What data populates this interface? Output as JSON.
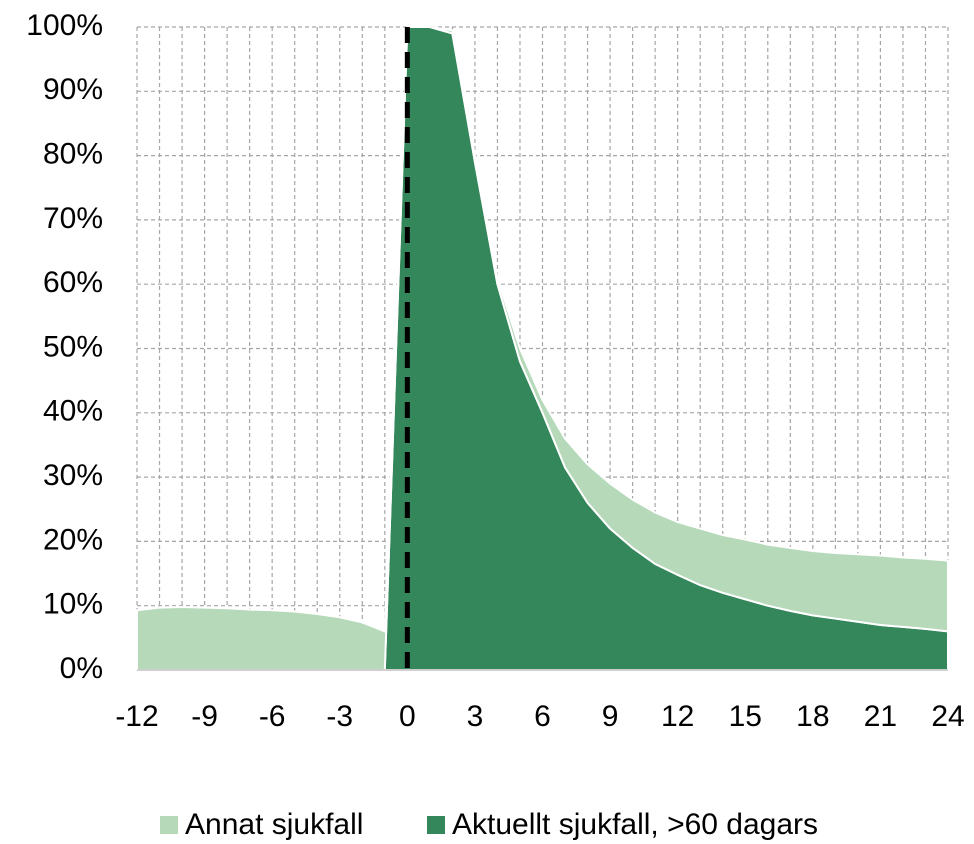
{
  "chart_data": {
    "type": "stacked_area",
    "x": [
      -12,
      -11,
      -10,
      -9,
      -8,
      -7,
      -6,
      -5,
      -4,
      -3,
      -2,
      -1,
      0,
      1,
      2,
      3,
      4,
      5,
      6,
      7,
      8,
      9,
      10,
      11,
      12,
      13,
      14,
      15,
      16,
      17,
      18,
      19,
      20,
      21,
      22,
      23,
      24
    ],
    "series": [
      {
        "name": "Annat sjukfall",
        "color": "#b5d9b9",
        "values": [
          9.3,
          9.7,
          9.8,
          9.7,
          9.6,
          9.4,
          9.3,
          9.1,
          8.7,
          8.2,
          7.4,
          6,
          0,
          0,
          0.5,
          1,
          1,
          2,
          2,
          4.5,
          6,
          7,
          7.5,
          8,
          8.2,
          8.8,
          9,
          9.3,
          9.5,
          9.8,
          10,
          10.2,
          10.5,
          10.8,
          10.8,
          10.9,
          11
        ]
      },
      {
        "name": "Aktuellt sjukfall, >60 dagars",
        "color": "#33875a",
        "values": [
          0,
          0,
          0,
          0,
          0,
          0,
          0,
          0,
          0,
          0,
          0,
          0,
          100,
          100,
          99,
          79,
          60,
          48,
          40,
          31.5,
          26,
          22,
          19,
          16.5,
          14.8,
          13.2,
          12,
          11,
          10,
          9.2,
          8.5,
          8,
          7.5,
          7,
          6.7,
          6.4,
          6
        ]
      }
    ],
    "stack_bottom_first": 1,
    "xlim": [
      -12,
      24
    ],
    "xticks": [
      -12,
      -9,
      -6,
      -3,
      0,
      3,
      6,
      9,
      12,
      15,
      18,
      21,
      24
    ],
    "ylim": [
      0,
      100
    ],
    "yticks": [
      {
        "value": 0,
        "label": "0%"
      },
      {
        "value": 10,
        "label": "10%"
      },
      {
        "value": 20,
        "label": "20%"
      },
      {
        "value": 30,
        "label": "30%"
      },
      {
        "value": 40,
        "label": "40%"
      },
      {
        "value": 50,
        "label": "50%"
      },
      {
        "value": 60,
        "label": "60%"
      },
      {
        "value": 70,
        "label": "70%"
      },
      {
        "value": 80,
        "label": "80%"
      },
      {
        "value": 90,
        "label": "90%"
      },
      {
        "value": 100,
        "label": "100%"
      }
    ],
    "grid": true,
    "vline": 0,
    "legend": "bottom"
  }
}
